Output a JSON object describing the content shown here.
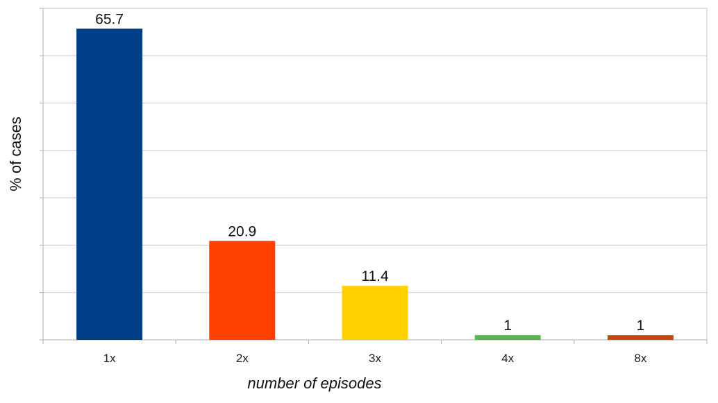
{
  "chart_data": {
    "type": "bar",
    "title": "",
    "xlabel": "number of episodes",
    "ylabel": "% of cases",
    "categories": [
      "1x",
      "2x",
      "3x",
      "4x",
      "8x"
    ],
    "values": [
      65.7,
      20.9,
      11.4,
      1,
      1
    ],
    "data_labels": [
      "65.7",
      "20.9",
      "11.4",
      "1",
      "1"
    ],
    "bar_colors": [
      "#003f87",
      "#ff4000",
      "#ffd200",
      "#55b84f",
      "#c8460c"
    ],
    "ylim": [
      0,
      70
    ],
    "y_gridline_step": 10,
    "y_tick_labels_shown": false,
    "grid": true,
    "legend": "none"
  }
}
